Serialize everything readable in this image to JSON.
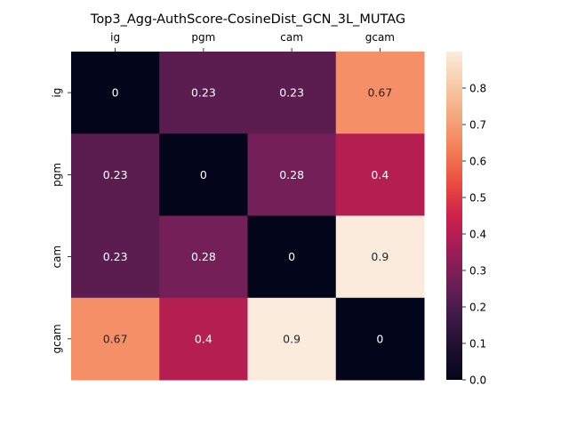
{
  "chart_data": {
    "type": "heatmap",
    "title": "Top3_Agg-AuthScore-CosineDist_GCN_3L_MUTAG",
    "x_categories": [
      "ig",
      "pgm",
      "cam",
      "gcam"
    ],
    "y_categories": [
      "ig",
      "pgm",
      "cam",
      "gcam"
    ],
    "values": [
      [
        0,
        0.23,
        0.23,
        0.67
      ],
      [
        0.23,
        0,
        0.28,
        0.4
      ],
      [
        0.23,
        0.28,
        0,
        0.9
      ],
      [
        0.67,
        0.4,
        0.9,
        0
      ]
    ],
    "value_labels": [
      [
        "0",
        "0.23",
        "0.23",
        "0.67"
      ],
      [
        "0.23",
        "0",
        "0.28",
        "0.4"
      ],
      [
        "0.23",
        "0.28",
        "0",
        "0.9"
      ],
      [
        "0.67",
        "0.4",
        "0.9",
        "0"
      ]
    ],
    "x_axis_position": "top",
    "colormap": "rocket",
    "colorbar": {
      "range": [
        0,
        0.9
      ],
      "ticks": [
        0.0,
        0.1,
        0.2,
        0.3,
        0.4,
        0.5,
        0.6,
        0.7,
        0.8
      ],
      "tick_labels": [
        "0.0",
        "0.1",
        "0.2",
        "0.3",
        "0.4",
        "0.5",
        "0.6",
        "0.7",
        "0.8"
      ]
    }
  }
}
